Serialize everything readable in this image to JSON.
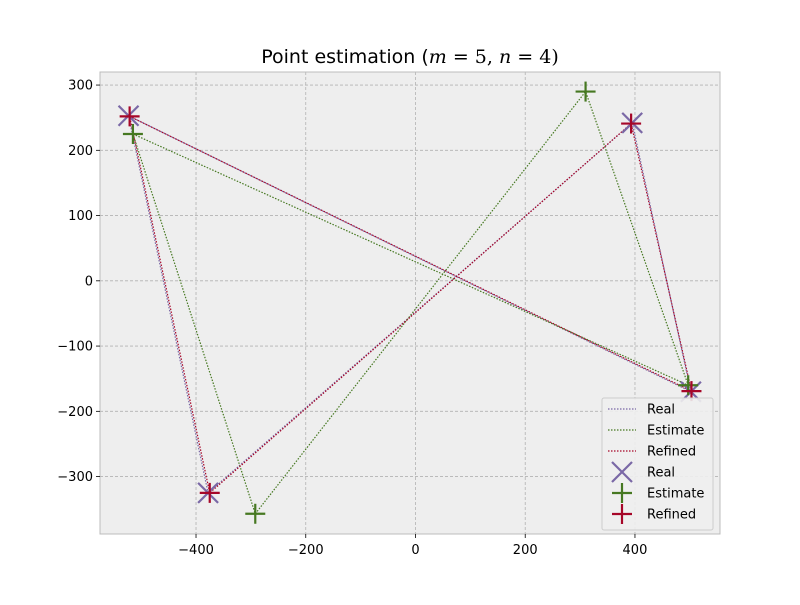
{
  "chart_data": {
    "type": "scatter",
    "title": "Point estimation (m = 5, n = 4)",
    "title_parts": {
      "prefix": "Point estimation (",
      "m_var": "m",
      "m_eq": " = 5, ",
      "n_var": "n",
      "n_eq": " = 4)"
    },
    "xlabel": "",
    "ylabel": "",
    "xlim": [
      -575,
      555
    ],
    "ylim": [
      -388,
      320
    ],
    "xticks": [
      -400,
      -200,
      0,
      200,
      400
    ],
    "yticks": [
      -300,
      -200,
      -100,
      0,
      100,
      200,
      300
    ],
    "xtick_labels": [
      "−400",
      "−200",
      "0",
      "200",
      "400"
    ],
    "ytick_labels": [
      "−300",
      "−200",
      "−100",
      "0",
      "100",
      "200",
      "300"
    ],
    "grid": true,
    "legend_position": "lower-right",
    "series": [
      {
        "name": "Real",
        "color": "#7a68a6",
        "marker": "x",
        "points": [
          [
            -523,
            253
          ],
          [
            395,
            242
          ],
          [
            502,
            -170
          ],
          [
            -378,
            -325
          ]
        ],
        "path_order": [
          0,
          2,
          1,
          3,
          0
        ]
      },
      {
        "name": "Estimate",
        "color": "#467821",
        "marker": "+",
        "points": [
          [
            -515,
            225
          ],
          [
            310,
            290
          ],
          [
            497,
            -160
          ],
          [
            -292,
            -357
          ]
        ],
        "path_order": [
          0,
          2,
          1,
          3,
          0
        ]
      },
      {
        "name": "Refined",
        "color": "#a60628",
        "marker": "+",
        "points": [
          [
            -521,
            252
          ],
          [
            393,
            241
          ],
          [
            503,
            -169
          ],
          [
            -375,
            -325
          ]
        ],
        "path_order": [
          0,
          2,
          1,
          3,
          0
        ]
      }
    ],
    "legend_entries": [
      {
        "label": "Real",
        "kind": "line",
        "series": 0
      },
      {
        "label": "Estimate",
        "kind": "line",
        "series": 1
      },
      {
        "label": "Refined",
        "kind": "line",
        "series": 2
      },
      {
        "label": "Real",
        "kind": "marker",
        "series": 0
      },
      {
        "label": "Estimate",
        "kind": "marker",
        "series": 1
      },
      {
        "label": "Refined",
        "kind": "marker",
        "series": 2
      }
    ],
    "colors": {
      "axes_background": "#eeeeee",
      "grid": "#b2b2b2",
      "spine": "#bcbcbc"
    }
  }
}
